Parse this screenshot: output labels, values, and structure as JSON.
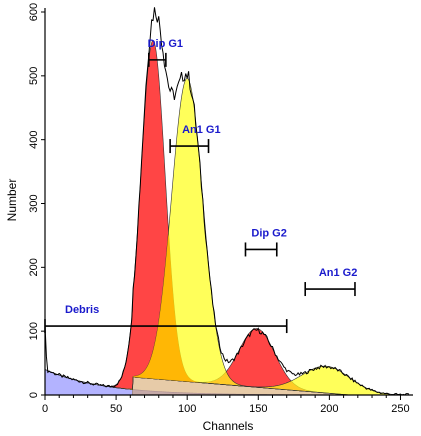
{
  "chart_data": {
    "type": "area",
    "xlabel": "Channels",
    "ylabel": "Number",
    "xlim": [
      0,
      256
    ],
    "ylim": [
      0,
      600
    ],
    "xticks": [
      0,
      50,
      100,
      150,
      200,
      250
    ],
    "yticks": [
      0,
      100,
      200,
      300,
      400,
      500,
      600
    ],
    "colors": {
      "axis": "#000000",
      "annotation": "#1a1acc",
      "dip": "#ff3b3b",
      "an1": "#ffff1a",
      "overlap": "#ffb400",
      "debris": "#b3b3ff",
      "sphase": "#d4a060"
    },
    "components": [
      {
        "id": "debris",
        "shape": "exp-decay",
        "amplitude": 40,
        "decay": 40
      },
      {
        "id": "dip_g1",
        "shape": "gaussian",
        "center": 76,
        "sigma": 8.5,
        "height": 530
      },
      {
        "id": "an1_g1",
        "shape": "gaussian",
        "center": 100,
        "sigma": 11,
        "height": 475
      },
      {
        "id": "dip_g2",
        "shape": "gaussian",
        "center": 149,
        "sigma": 12.5,
        "height": 92
      },
      {
        "id": "an1_g2",
        "shape": "gaussian",
        "center": 198,
        "sigma": 17,
        "height": 42
      },
      {
        "id": "s_phase",
        "shape": "trapezoid",
        "x_start": 62,
        "x_end": 215,
        "y_start": 28,
        "y_end": 0
      }
    ],
    "annotations": [
      {
        "label": "Dip G1",
        "range": [
          73,
          85
        ],
        "y": 525
      },
      {
        "label": "An1 G1",
        "range": [
          88,
          115
        ],
        "y": 390
      },
      {
        "label": "Dip G2",
        "range": [
          141,
          163
        ],
        "y": 228
      },
      {
        "label": "An1 G2",
        "range": [
          183,
          218
        ],
        "y": 166
      },
      {
        "label": "Debris",
        "range": [
          0,
          170
        ],
        "y": 108
      }
    ]
  }
}
